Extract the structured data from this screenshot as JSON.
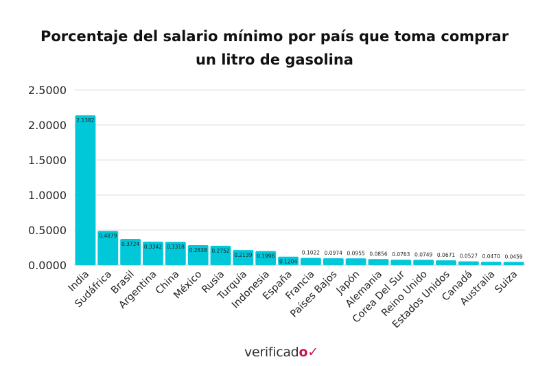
{
  "chart_data": {
    "type": "bar",
    "title": "Porcentaje del salario mínimo por país que toma comprar un litro de gasolina",
    "title_lines": [
      "Porcentaje del salario mínimo por país que toma comprar",
      "un litro de gasolina"
    ],
    "categories": [
      "India",
      "Sudáfrica",
      "Brasil",
      "Argentina",
      "China",
      "México",
      "Rusia",
      "Turquía",
      "Indonesia",
      "España",
      "Francia",
      "Países Bajos",
      "Japón",
      "Alemania",
      "Corea Del Sur",
      "Reino Unido",
      "Estados Unidos",
      "Canadá",
      "Australia",
      "Suiza"
    ],
    "values": [
      2.1382,
      0.4879,
      0.3724,
      0.3342,
      0.3318,
      0.2838,
      0.2752,
      0.2139,
      0.1996,
      0.1204,
      0.1022,
      0.0974,
      0.0955,
      0.0856,
      0.0763,
      0.0749,
      0.0671,
      0.0527,
      0.047,
      0.0459
    ],
    "data_labels": [
      "2.1382",
      "0.4879",
      "0.3724",
      "0.3342",
      "0.3318",
      "0.2838",
      "0.2752",
      "0.2139",
      "0.1996",
      "0.1204",
      "0.1022",
      "0.0974",
      "0.0955",
      "0.0856",
      "0.0763",
      "0.0749",
      "0.0671",
      "0.0527",
      "0.0470",
      "0.0459"
    ],
    "yticks": [
      "0.0000",
      "0.5000",
      "1.0000",
      "1.5000",
      "2.0000",
      "2.5000"
    ],
    "ylim": [
      0,
      2.5
    ],
    "xlabel": "",
    "ylabel": "",
    "grid": true,
    "bar_color": "#00c8d9"
  },
  "logo": {
    "text": "verificad",
    "mark": "o✓"
  }
}
